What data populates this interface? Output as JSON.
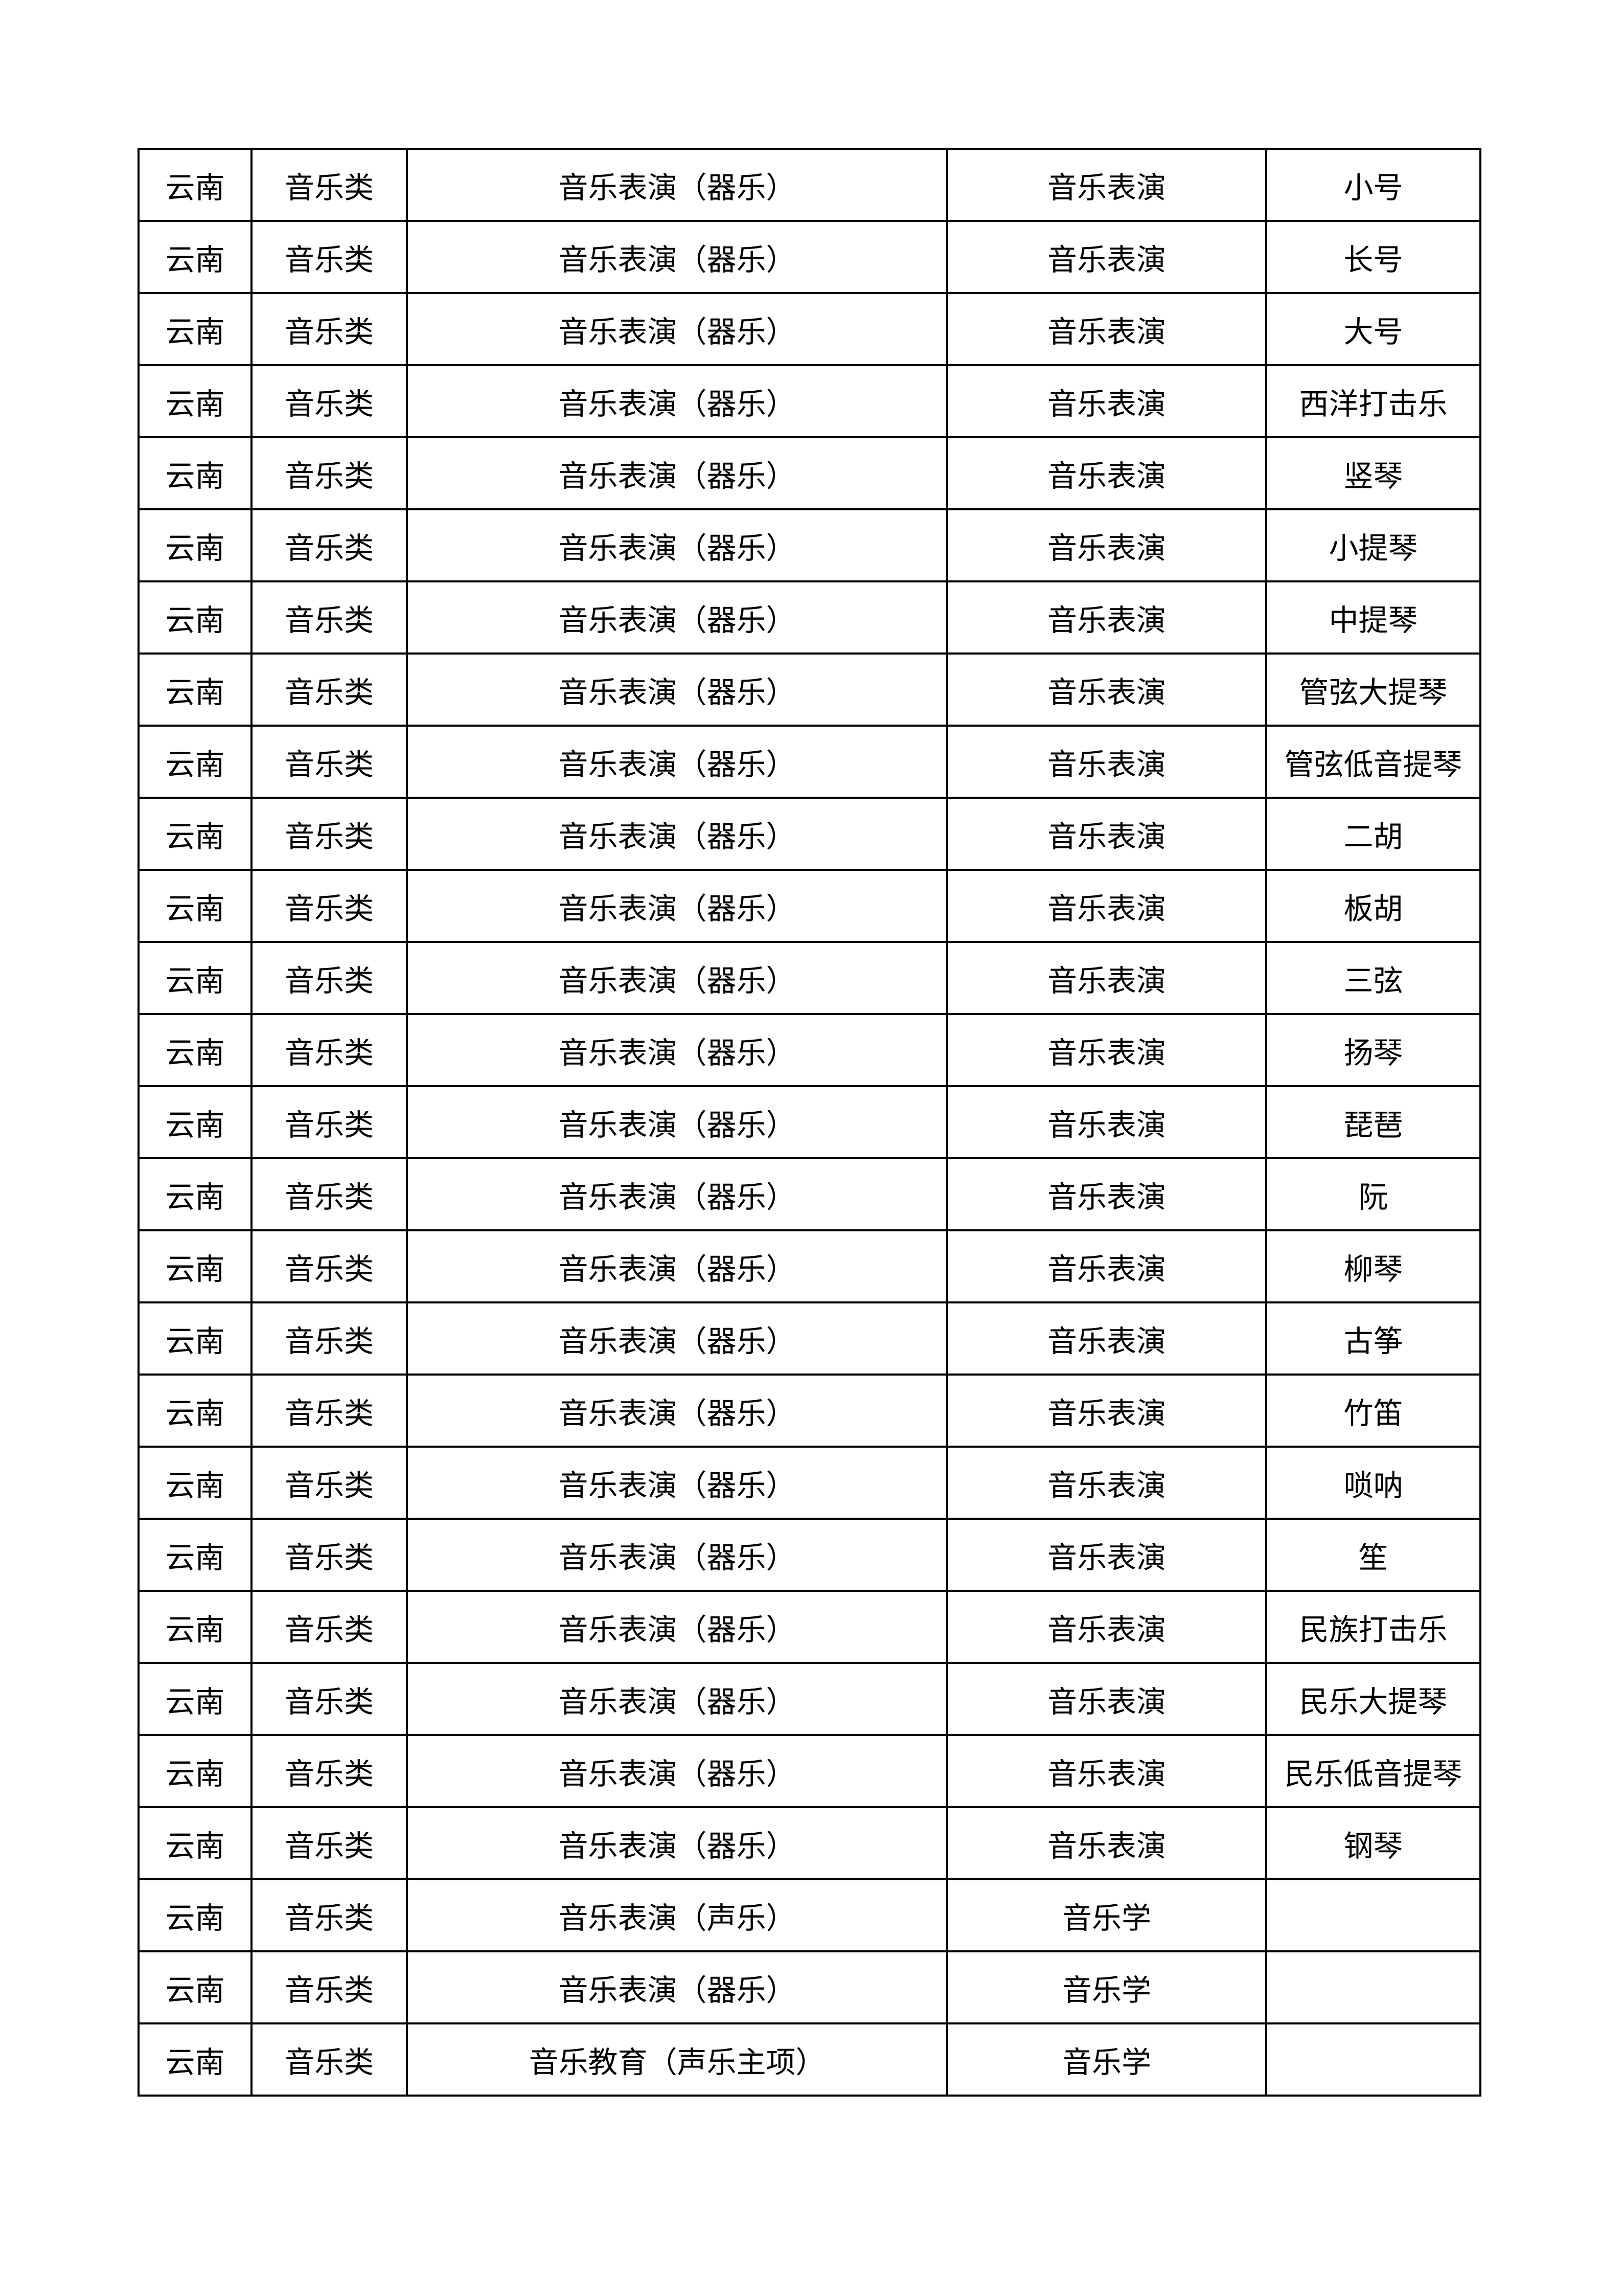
{
  "table": {
    "rows": [
      [
        "云南",
        "音乐类",
        "音乐表演（器乐）",
        "音乐表演",
        "小号"
      ],
      [
        "云南",
        "音乐类",
        "音乐表演（器乐）",
        "音乐表演",
        "长号"
      ],
      [
        "云南",
        "音乐类",
        "音乐表演（器乐）",
        "音乐表演",
        "大号"
      ],
      [
        "云南",
        "音乐类",
        "音乐表演（器乐）",
        "音乐表演",
        "西洋打击乐"
      ],
      [
        "云南",
        "音乐类",
        "音乐表演（器乐）",
        "音乐表演",
        "竖琴"
      ],
      [
        "云南",
        "音乐类",
        "音乐表演（器乐）",
        "音乐表演",
        "小提琴"
      ],
      [
        "云南",
        "音乐类",
        "音乐表演（器乐）",
        "音乐表演",
        "中提琴"
      ],
      [
        "云南",
        "音乐类",
        "音乐表演（器乐）",
        "音乐表演",
        "管弦大提琴"
      ],
      [
        "云南",
        "音乐类",
        "音乐表演（器乐）",
        "音乐表演",
        "管弦低音提琴"
      ],
      [
        "云南",
        "音乐类",
        "音乐表演（器乐）",
        "音乐表演",
        "二胡"
      ],
      [
        "云南",
        "音乐类",
        "音乐表演（器乐）",
        "音乐表演",
        "板胡"
      ],
      [
        "云南",
        "音乐类",
        "音乐表演（器乐）",
        "音乐表演",
        "三弦"
      ],
      [
        "云南",
        "音乐类",
        "音乐表演（器乐）",
        "音乐表演",
        "扬琴"
      ],
      [
        "云南",
        "音乐类",
        "音乐表演（器乐）",
        "音乐表演",
        "琵琶"
      ],
      [
        "云南",
        "音乐类",
        "音乐表演（器乐）",
        "音乐表演",
        "阮"
      ],
      [
        "云南",
        "音乐类",
        "音乐表演（器乐）",
        "音乐表演",
        "柳琴"
      ],
      [
        "云南",
        "音乐类",
        "音乐表演（器乐）",
        "音乐表演",
        "古筝"
      ],
      [
        "云南",
        "音乐类",
        "音乐表演（器乐）",
        "音乐表演",
        "竹笛"
      ],
      [
        "云南",
        "音乐类",
        "音乐表演（器乐）",
        "音乐表演",
        "唢呐"
      ],
      [
        "云南",
        "音乐类",
        "音乐表演（器乐）",
        "音乐表演",
        "笙"
      ],
      [
        "云南",
        "音乐类",
        "音乐表演（器乐）",
        "音乐表演",
        "民族打击乐"
      ],
      [
        "云南",
        "音乐类",
        "音乐表演（器乐）",
        "音乐表演",
        "民乐大提琴"
      ],
      [
        "云南",
        "音乐类",
        "音乐表演（器乐）",
        "音乐表演",
        "民乐低音提琴"
      ],
      [
        "云南",
        "音乐类",
        "音乐表演（器乐）",
        "音乐表演",
        "钢琴"
      ],
      [
        "云南",
        "音乐类",
        "音乐表演（声乐）",
        "音乐学",
        ""
      ],
      [
        "云南",
        "音乐类",
        "音乐表演（器乐）",
        "音乐学",
        ""
      ],
      [
        "云南",
        "音乐类",
        "音乐教育（声乐主项）",
        "音乐学",
        ""
      ]
    ]
  }
}
